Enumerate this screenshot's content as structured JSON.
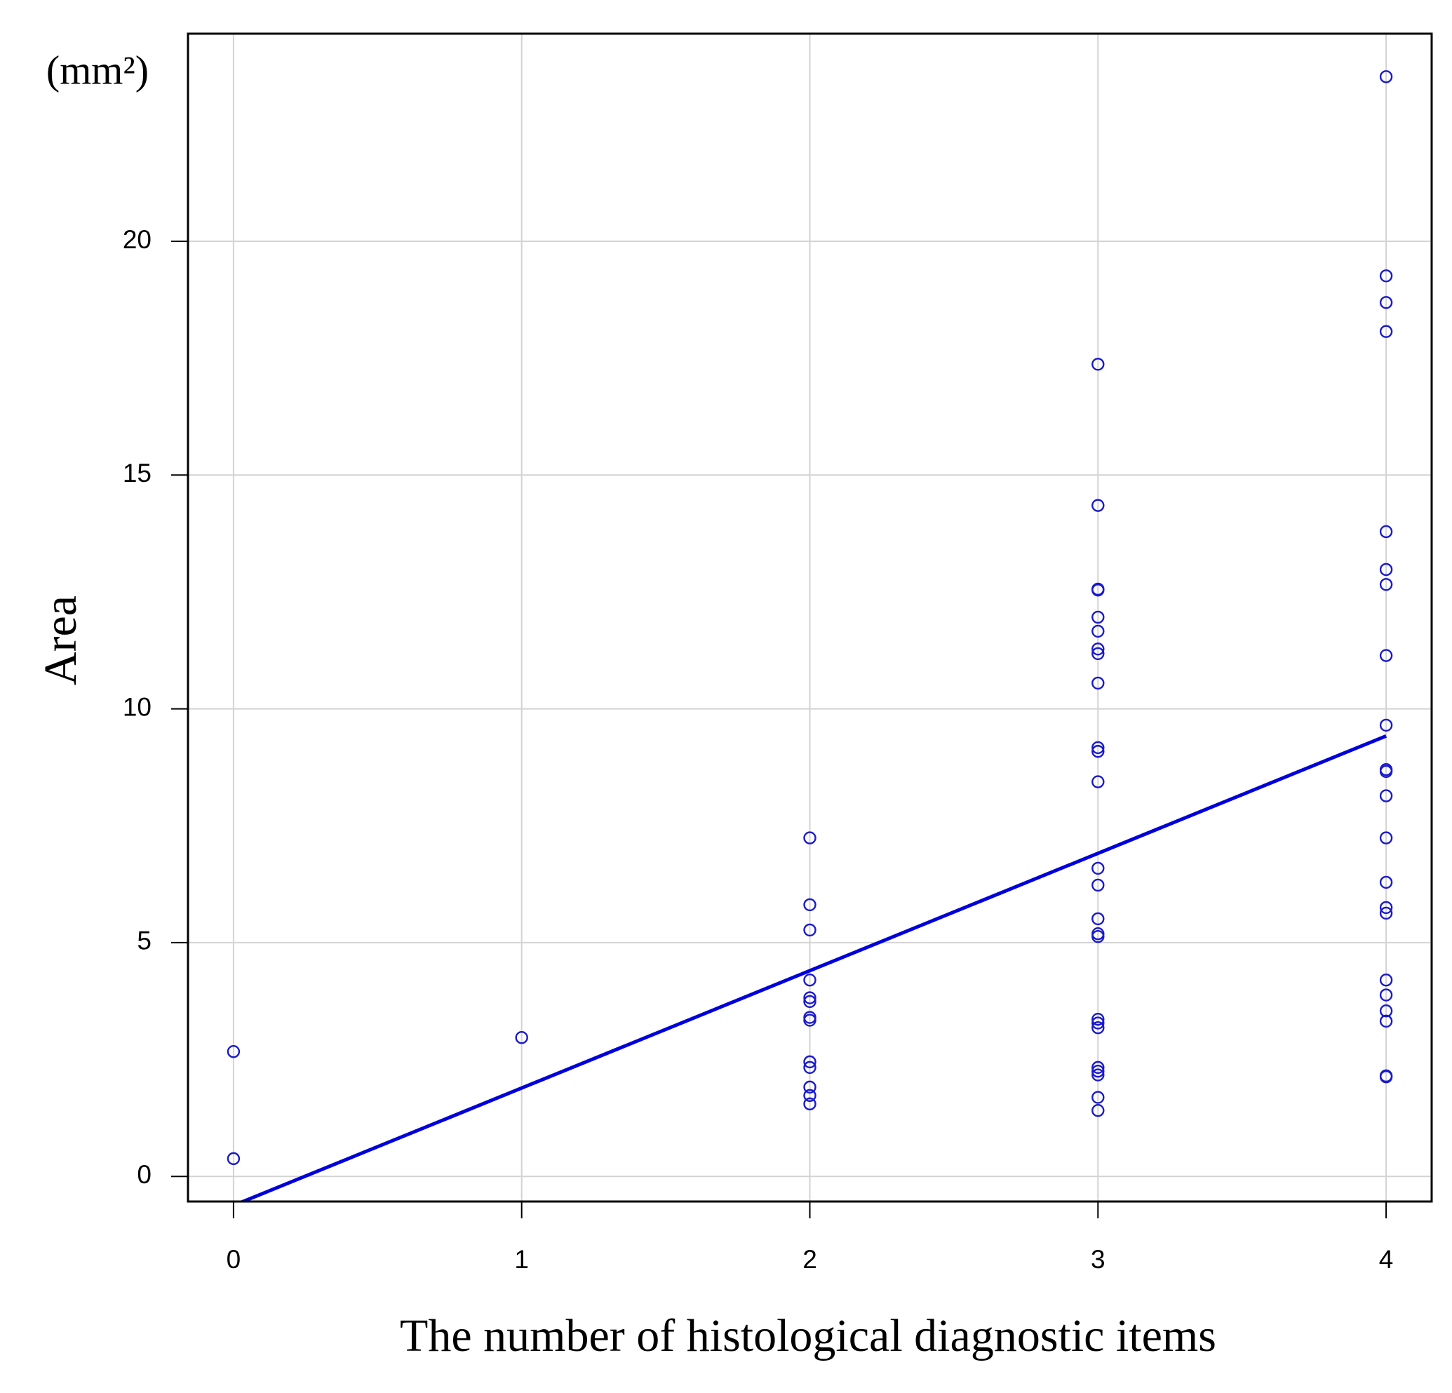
{
  "chart_data": {
    "type": "scatter",
    "x_label": "The number of histological diagnostic items",
    "y_label": "Area",
    "y_unit": "(mm²)",
    "xlim": [
      -0.158,
      4.158
    ],
    "ylim": [
      -0.537,
      24.44
    ],
    "xticks": [
      0,
      1,
      2,
      3,
      4
    ],
    "yticks": [
      0,
      5,
      10,
      15,
      20
    ],
    "grid": true,
    "series": [
      {
        "type": "scatter",
        "color": "#1a1acc",
        "x": [
          0,
          0,
          1,
          2,
          2,
          2,
          2,
          2,
          2,
          2,
          2,
          2,
          2,
          2,
          2,
          2,
          3,
          3,
          3,
          3,
          3,
          3,
          3,
          3,
          3,
          3,
          3,
          3,
          3,
          3,
          3,
          3,
          3,
          3,
          3,
          3,
          3,
          3,
          3,
          3,
          3,
          4,
          4,
          4,
          4,
          4,
          4,
          4,
          4,
          4,
          4,
          4,
          4,
          4,
          4,
          4,
          4,
          4,
          4,
          4,
          4,
          4,
          4
        ],
        "values": [
          2.67,
          0.38,
          2.97,
          7.24,
          5.81,
          5.27,
          4.2,
          3.82,
          3.74,
          3.4,
          3.34,
          2.45,
          2.33,
          1.91,
          1.73,
          1.55,
          17.37,
          14.35,
          12.56,
          12.54,
          11.96,
          11.66,
          11.28,
          11.18,
          10.55,
          9.17,
          9.09,
          8.44,
          6.59,
          6.23,
          5.51,
          5.19,
          5.13,
          3.36,
          3.28,
          3.18,
          2.33,
          2.25,
          2.17,
          1.69,
          1.41,
          23.52,
          19.26,
          18.69,
          18.07,
          13.79,
          12.98,
          12.66,
          11.14,
          9.65,
          8.7,
          8.66,
          8.14,
          7.24,
          6.29,
          5.75,
          5.63,
          4.2,
          3.88,
          3.54,
          3.32,
          2.15,
          2.13
        ]
      },
      {
        "type": "line",
        "color": "#0000dd",
        "x": [
          0,
          4
        ],
        "values": [
          -0.62,
          9.42
        ]
      }
    ]
  }
}
